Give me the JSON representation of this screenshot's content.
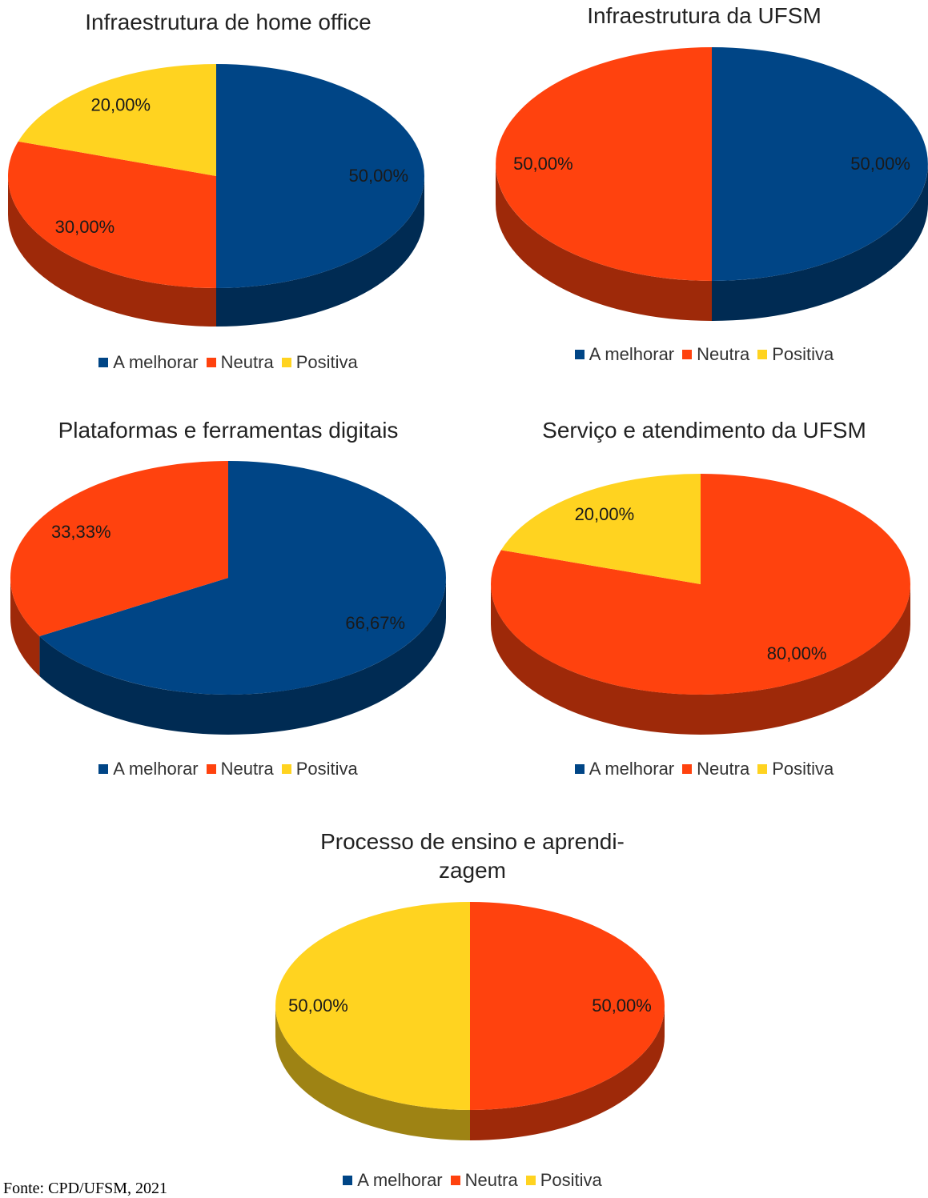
{
  "colors": {
    "A melhorar": "#004586",
    "Neutra": "#ff420e",
    "Positiva": "#ffd320"
  },
  "legend": [
    "A melhorar",
    "Neutra",
    "Positiva"
  ],
  "chart_data": [
    {
      "type": "pie",
      "title": "Infraestrutura de home office",
      "series": [
        {
          "name": "A melhorar",
          "value": 50,
          "label": "50,00%"
        },
        {
          "name": "Neutra",
          "value": 30,
          "label": "30,00%"
        },
        {
          "name": "Positiva",
          "value": 20,
          "label": "20,00%"
        }
      ],
      "legend_position": "bottom"
    },
    {
      "type": "pie",
      "title": "Infraestrutura da UFSM",
      "series": [
        {
          "name": "A melhorar",
          "value": 50,
          "label": "50,00%"
        },
        {
          "name": "Neutra",
          "value": 50,
          "label": "50,00%"
        },
        {
          "name": "Positiva",
          "value": 0,
          "label": ""
        }
      ],
      "legend_position": "bottom"
    },
    {
      "type": "pie",
      "title": "Plataformas e ferramentas digitais",
      "series": [
        {
          "name": "A melhorar",
          "value": 66.67,
          "label": "66,67%"
        },
        {
          "name": "Neutra",
          "value": 33.33,
          "label": "33,33%"
        },
        {
          "name": "Positiva",
          "value": 0,
          "label": ""
        }
      ],
      "legend_position": "bottom"
    },
    {
      "type": "pie",
      "title": "Serviço e atendimento da UFSM",
      "series": [
        {
          "name": "A melhorar",
          "value": 0,
          "label": ""
        },
        {
          "name": "Neutra",
          "value": 80,
          "label": "80,00%"
        },
        {
          "name": "Positiva",
          "value": 20,
          "label": "20,00%"
        }
      ],
      "legend_position": "bottom"
    },
    {
      "type": "pie",
      "title": "Processo de ensino e aprendi-\nzagem",
      "series": [
        {
          "name": "A melhorar",
          "value": 0,
          "label": ""
        },
        {
          "name": "Neutra",
          "value": 50,
          "label": "50,00%"
        },
        {
          "name": "Positiva",
          "value": 50,
          "label": "50,00%"
        }
      ],
      "legend_position": "bottom"
    }
  ],
  "source": "Fonte: CPD/UFSM, 2021"
}
